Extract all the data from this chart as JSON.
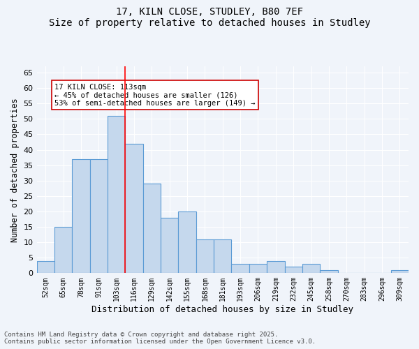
{
  "title_line1": "17, KILN CLOSE, STUDLEY, B80 7EF",
  "title_line2": "Size of property relative to detached houses in Studley",
  "xlabel": "Distribution of detached houses by size in Studley",
  "ylabel": "Number of detached properties",
  "categories": [
    "52sqm",
    "65sqm",
    "78sqm",
    "91sqm",
    "103sqm",
    "116sqm",
    "129sqm",
    "142sqm",
    "155sqm",
    "168sqm",
    "181sqm",
    "193sqm",
    "206sqm",
    "219sqm",
    "232sqm",
    "245sqm",
    "258sqm",
    "270sqm",
    "283sqm",
    "296sqm",
    "309sqm"
  ],
  "values": [
    4,
    15,
    37,
    37,
    51,
    42,
    29,
    18,
    20,
    11,
    11,
    3,
    3,
    4,
    2,
    3,
    1,
    0,
    0,
    0,
    1
  ],
  "bar_color": "#c5d8ed",
  "bar_edge_color": "#5b9bd5",
  "highlight_bar_index": 4,
  "red_line_x": 4.5,
  "annotation_text": "17 KILN CLOSE: 113sqm\n← 45% of detached houses are smaller (126)\n53% of semi-detached houses are larger (149) →",
  "annotation_box_color": "#ffffff",
  "annotation_box_edge": "#cc0000",
  "ylim": [
    0,
    67
  ],
  "yticks": [
    0,
    5,
    10,
    15,
    20,
    25,
    30,
    35,
    40,
    45,
    50,
    55,
    60,
    65
  ],
  "background_color": "#f0f4fa",
  "grid_color": "#ffffff",
  "footer_line1": "Contains HM Land Registry data © Crown copyright and database right 2025.",
  "footer_line2": "Contains public sector information licensed under the Open Government Licence v3.0."
}
